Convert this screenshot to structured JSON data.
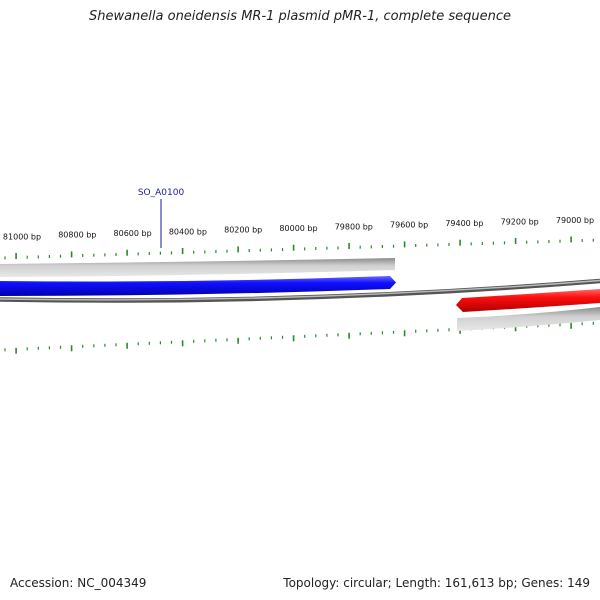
{
  "title": "Shewanella oneidensis MR-1 plasmid pMR-1, complete sequence",
  "footer": {
    "accession": "Accession: NC_004349",
    "summary": "Topology: circular; Length: 161,613 bp; Genes: 149"
  },
  "colors": {
    "forward_gene": "#1414ff",
    "reverse_gene": "#ff1414",
    "backbone": "#888888",
    "ticks": "#2a8a2a",
    "gene_label": "#1a1aa0"
  },
  "tick_labels": [
    "81000 bp",
    "80800 bp",
    "80600 bp",
    "80400 bp",
    "80200 bp",
    "80000 bp",
    "79800 bp",
    "79600 bp",
    "79400 bp",
    "79200 bp",
    "79000 bp"
  ],
  "gene_label": "SO_A0100"
}
